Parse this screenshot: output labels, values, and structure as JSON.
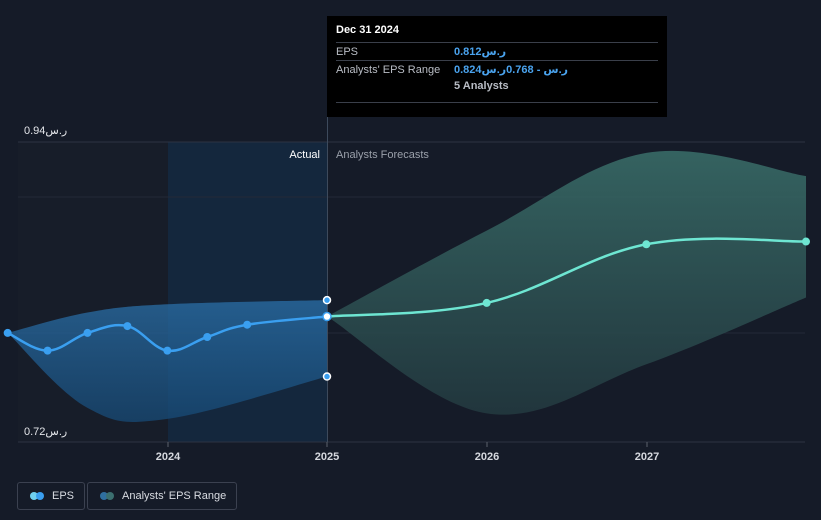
{
  "chart_data": {
    "type": "line",
    "x_ticks": [
      "2024",
      "2025",
      "2026",
      "2027"
    ],
    "y_axis": {
      "top_label": "0.94ر.س",
      "bottom_label": "0.72ر.س",
      "ylim": [
        0.72,
        0.94
      ]
    },
    "section_labels": {
      "actual": "Actual",
      "forecast": "Analysts Forecasts"
    },
    "series": [
      {
        "name": "EPS",
        "kind": "actual",
        "points": [
          {
            "x": 2023.0,
            "y": 0.8
          },
          {
            "x": 2023.25,
            "y": 0.787
          },
          {
            "x": 2023.5,
            "y": 0.8
          },
          {
            "x": 2023.75,
            "y": 0.805
          },
          {
            "x": 2024.0,
            "y": 0.787
          },
          {
            "x": 2024.25,
            "y": 0.797
          },
          {
            "x": 2024.5,
            "y": 0.806
          },
          {
            "x": 2025.0,
            "y": 0.812
          }
        ]
      },
      {
        "name": "EPS",
        "kind": "forecast",
        "points": [
          {
            "x": 2025.0,
            "y": 0.812
          },
          {
            "x": 2026.0,
            "y": 0.822
          },
          {
            "x": 2027.0,
            "y": 0.865
          },
          {
            "x": 2028.0,
            "y": 0.867
          }
        ]
      }
    ],
    "range_actual": {
      "upper": [
        {
          "x": 2023.0,
          "y": 0.8
        },
        {
          "x": 2023.5,
          "y": 0.815
        },
        {
          "x": 2024.0,
          "y": 0.821
        },
        {
          "x": 2025.0,
          "y": 0.824
        }
      ],
      "lower": [
        {
          "x": 2023.0,
          "y": 0.8
        },
        {
          "x": 2023.5,
          "y": 0.745
        },
        {
          "x": 2024.0,
          "y": 0.737
        },
        {
          "x": 2025.0,
          "y": 0.768
        }
      ]
    },
    "range_forecast": {
      "upper": [
        {
          "x": 2025.0,
          "y": 0.812
        },
        {
          "x": 2026.0,
          "y": 0.875
        },
        {
          "x": 2027.0,
          "y": 0.932
        },
        {
          "x": 2028.0,
          "y": 0.915
        }
      ],
      "lower": [
        {
          "x": 2025.0,
          "y": 0.812
        },
        {
          "x": 2026.0,
          "y": 0.741
        },
        {
          "x": 2027.0,
          "y": 0.777
        },
        {
          "x": 2028.0,
          "y": 0.826
        }
      ]
    },
    "range_markers": [
      {
        "x": 2025.0,
        "y": 0.824
      },
      {
        "x": 2025.0,
        "y": 0.768
      }
    ],
    "x_domain": [
      2022.94,
      2028.0
    ],
    "colors": {
      "actual_line": "#3a9ff0",
      "forecast_line": "#6ee6d2",
      "actual_range": "#1f5f93",
      "forecast_range": "#2f5f5e"
    }
  },
  "tooltip": {
    "date": "Dec 31 2024",
    "eps_label": "EPS",
    "eps_value": "0.812ر.س",
    "range_label": "Analysts' EPS Range",
    "range_value": "0.824ر.س - 0.768ر.س",
    "analysts": "5 Analysts"
  },
  "legend": {
    "eps_label": "EPS",
    "range_label": "Analysts' EPS Range"
  }
}
